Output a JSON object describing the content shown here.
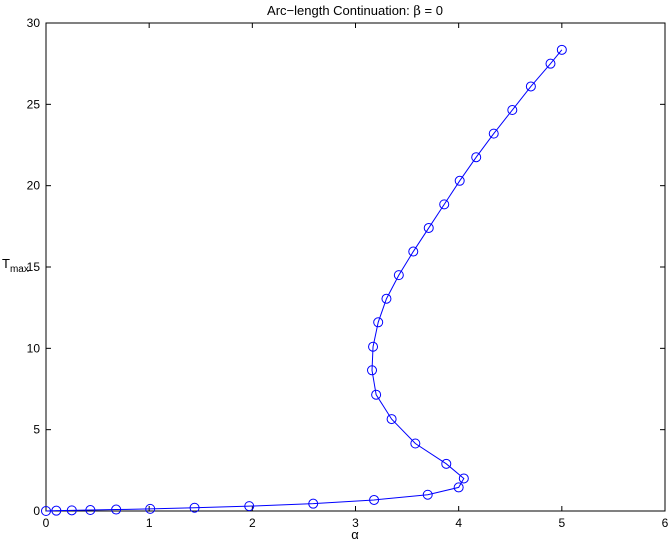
{
  "chart_data": {
    "type": "line",
    "title_parts": {
      "main": "Arc−length Continuation:  ",
      "symbol": "β",
      "tail": " = 0"
    },
    "xlabel": "α",
    "ylabel": {
      "base": "T",
      "sub": "max"
    },
    "xlim": [
      0,
      6
    ],
    "ylim": [
      0,
      30
    ],
    "xticks": [
      0,
      1,
      2,
      3,
      4,
      5,
      6
    ],
    "yticks": [
      0,
      5,
      10,
      15,
      20,
      25,
      30
    ],
    "grid": false,
    "line_color": "#0000ff",
    "marker": "circle",
    "series": [
      {
        "x": [
          0.0,
          0.1,
          0.25,
          0.43,
          0.68,
          1.01,
          1.44,
          1.97,
          2.59,
          3.18,
          3.7,
          4.0,
          4.05,
          3.88,
          3.58,
          3.35,
          3.2,
          3.16,
          3.17,
          3.22,
          3.3,
          3.42,
          3.56,
          3.71,
          3.86,
          4.01,
          4.17,
          4.34,
          4.52,
          4.7,
          4.89,
          5.0
        ],
        "y": [
          0.0,
          0.02,
          0.04,
          0.06,
          0.09,
          0.13,
          0.2,
          0.3,
          0.45,
          0.68,
          1.0,
          1.45,
          2.0,
          2.9,
          4.15,
          5.65,
          7.15,
          8.65,
          10.1,
          11.6,
          13.05,
          14.5,
          15.95,
          17.4,
          18.85,
          20.3,
          21.75,
          23.2,
          24.65,
          26.1,
          27.5,
          28.35
        ]
      }
    ]
  }
}
